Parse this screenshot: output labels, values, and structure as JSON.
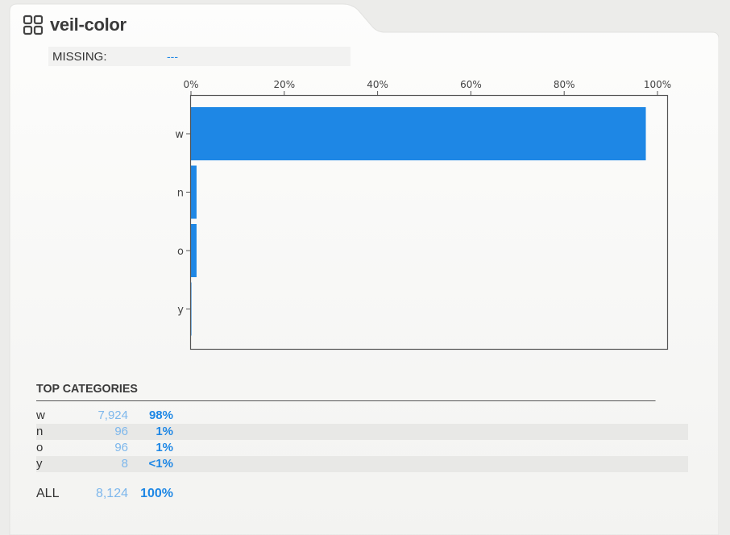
{
  "panel": {
    "title": "veil-color",
    "missing_label": "MISSING:",
    "missing_value": "---"
  },
  "chart_data": {
    "type": "bar",
    "orientation": "horizontal",
    "categories": [
      "w",
      "n",
      "o",
      "y"
    ],
    "values": [
      97.5,
      1.2,
      1.2,
      0.1
    ],
    "xlim": [
      0,
      100
    ],
    "xticks": [
      "0%",
      "20%",
      "40%",
      "60%",
      "80%",
      "100%"
    ],
    "bar_color": "#1e87e5"
  },
  "top_categories": {
    "title": "TOP CATEGORIES",
    "rows": [
      {
        "name": "w",
        "count": "7,924",
        "pct": "98%"
      },
      {
        "name": "n",
        "count": "96",
        "pct": "1%"
      },
      {
        "name": "o",
        "count": "96",
        "pct": "1%"
      },
      {
        "name": "y",
        "count": "8",
        "pct": "<1%"
      }
    ],
    "all": {
      "name": "ALL",
      "count": "8,124",
      "pct": "100%"
    }
  },
  "colors": {
    "accent": "#1e87e5",
    "count_color": "#7db7ec"
  }
}
